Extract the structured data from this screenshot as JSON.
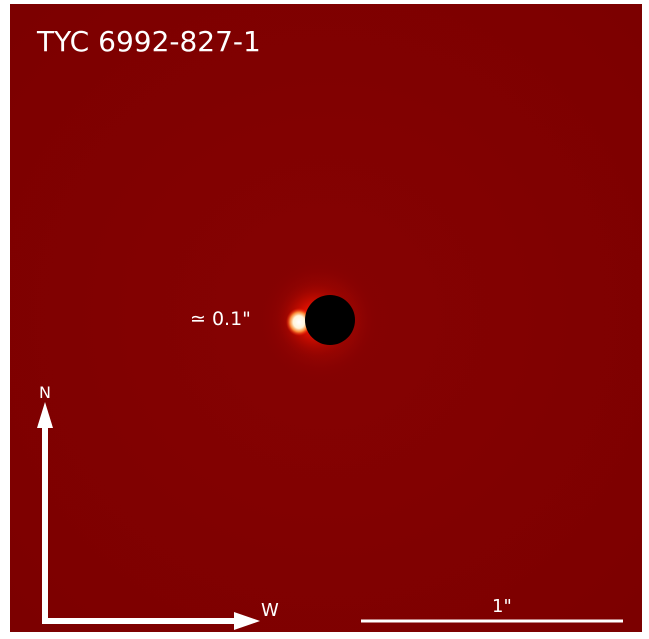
{
  "image": {
    "target_name": "TYC 6992-827-1",
    "separation_label": "≃ 0.1\"",
    "compass": {
      "north_label": "N",
      "west_label": "W"
    },
    "scale_bar": {
      "label": "1\""
    },
    "colors": {
      "background": "#7d0000",
      "halo_outer": "#9a0800",
      "halo_inner": "#ff2a12",
      "companion_core": "#ffffff",
      "coronagraph_mask": "#000000",
      "overlay": "#ffffff"
    }
  }
}
